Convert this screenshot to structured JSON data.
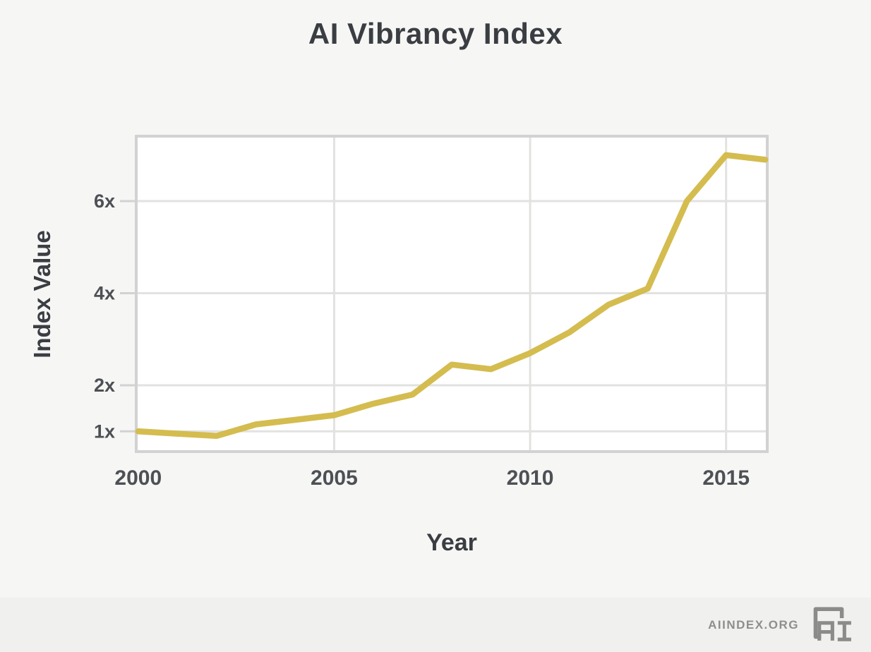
{
  "chart_data": {
    "type": "line",
    "title": "AI Vibrancy Index",
    "xlabel": "Year",
    "ylabel": "Index Value",
    "x": [
      2000,
      2001,
      2002,
      2003,
      2004,
      2005,
      2006,
      2007,
      2008,
      2009,
      2010,
      2011,
      2012,
      2013,
      2014,
      2015,
      2016
    ],
    "series": [
      {
        "name": "AI Vibrancy Index",
        "values": [
          1.0,
          0.95,
          0.9,
          1.15,
          1.25,
          1.35,
          1.6,
          1.8,
          2.45,
          2.35,
          2.7,
          3.15,
          3.75,
          4.1,
          6.0,
          7.0,
          6.9
        ]
      }
    ],
    "xticks": [
      2000,
      2005,
      2010,
      2015
    ],
    "yticks": [
      {
        "value": 1,
        "label": "1x"
      },
      {
        "value": 2,
        "label": "2x"
      },
      {
        "value": 4,
        "label": "4x"
      },
      {
        "value": 6,
        "label": "6x"
      }
    ],
    "xlim": [
      1999.95,
      2016.05
    ],
    "ylim": [
      0.56,
      7.41
    ],
    "grid": true,
    "legend_position": "none",
    "line_color": "#d4bc4f",
    "plot_background": "#ffffff"
  },
  "footer": {
    "brand": "AIINDEX.ORG",
    "logo": "ai-index-logo"
  },
  "colors": {
    "page_bg": "#f6f6f5",
    "footer_bg": "#f0f0ee",
    "text_dark": "#3a3d42",
    "tick_text": "#4d5054",
    "gridline": "#e2e2e1",
    "plot_border": "#d2d2d2",
    "footer_gray": "#8e8e8c"
  }
}
